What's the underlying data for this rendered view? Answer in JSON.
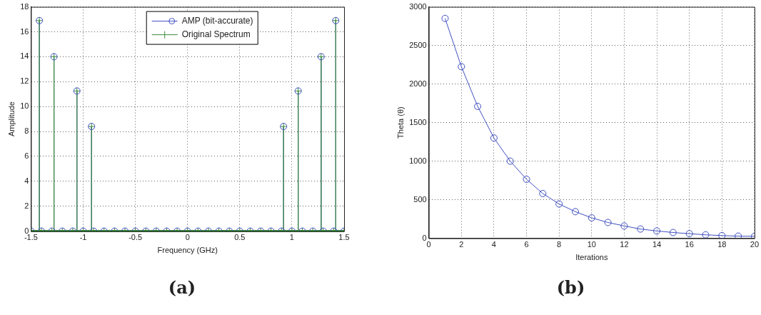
{
  "chart_data": [
    {
      "type": "lollipop",
      "xlabel": "Frequency (GHz)",
      "ylabel": "Amplitude",
      "xlim": [
        -1.5,
        1.5
      ],
      "xticks": [
        -1.5,
        -1,
        -0.5,
        0,
        0.5,
        1,
        1.5
      ],
      "ylim": [
        0,
        18
      ],
      "yticks": [
        0,
        2,
        4,
        6,
        8,
        10,
        12,
        14,
        16,
        18
      ],
      "grid": true,
      "legend": "top",
      "x": [
        -1.5,
        -1.42,
        -1.4,
        -1.3,
        -1.28,
        -1.2,
        -1.1,
        -1.06,
        -1,
        -0.92,
        -0.9,
        -0.8,
        -0.7,
        -0.6,
        -0.5,
        -0.4,
        -0.3,
        -0.2,
        -0.1,
        0,
        0.1,
        0.2,
        0.3,
        0.4,
        0.5,
        0.6,
        0.7,
        0.8,
        0.9,
        0.92,
        1,
        1.06,
        1.1,
        1.2,
        1.28,
        1.3,
        1.4,
        1.42,
        1.5
      ],
      "series": [
        {
          "name": "AMP (bit-accurate)",
          "color": "#4050c0",
          "marker": "circle",
          "values": [
            0,
            16.9,
            0,
            0,
            14.0,
            0,
            0,
            11.25,
            0,
            8.4,
            0,
            0,
            0,
            0,
            0,
            0,
            0,
            0,
            0,
            0,
            0,
            0,
            0,
            0,
            0,
            0,
            0,
            0,
            0,
            8.4,
            0,
            11.25,
            0,
            0,
            14.0,
            0,
            0,
            16.9,
            0
          ]
        },
        {
          "name": "Original Spectrum",
          "color": "#3c8c3c",
          "marker": "cross",
          "values": [
            0,
            16.9,
            0,
            0,
            14.0,
            0,
            0,
            11.25,
            0,
            8.4,
            0,
            0,
            0,
            0,
            0,
            0,
            0,
            0,
            0,
            0,
            0,
            0,
            0,
            0,
            0,
            0,
            0,
            0,
            0,
            8.4,
            0,
            11.25,
            0,
            0,
            14.0,
            0,
            0,
            16.9,
            0
          ]
        }
      ],
      "annotations": [
        "(a)"
      ]
    },
    {
      "type": "line",
      "xlabel": "Iterations",
      "ylabel": "Theta (θ)",
      "xlim": [
        0,
        20
      ],
      "xticks": [
        0,
        2,
        4,
        6,
        8,
        10,
        12,
        14,
        16,
        18,
        20
      ],
      "ylim": [
        0,
        3000
      ],
      "yticks": [
        0,
        500,
        1000,
        1500,
        2000,
        2500,
        3000
      ],
      "grid": true,
      "marker": "circle",
      "x": [
        1,
        2,
        3,
        4,
        5,
        6,
        7,
        8,
        9,
        10,
        11,
        12,
        13,
        14,
        15,
        16,
        17,
        18,
        19,
        20
      ],
      "series": [
        {
          "color": "#4050c0",
          "values": [
            2850,
            2225,
            1710,
            1300,
            1000,
            765,
            580,
            445,
            345,
            265,
            205,
            160,
            120,
            95,
            75,
            60,
            45,
            35,
            28,
            25
          ]
        }
      ],
      "annotations": [
        "(b)"
      ]
    }
  ]
}
